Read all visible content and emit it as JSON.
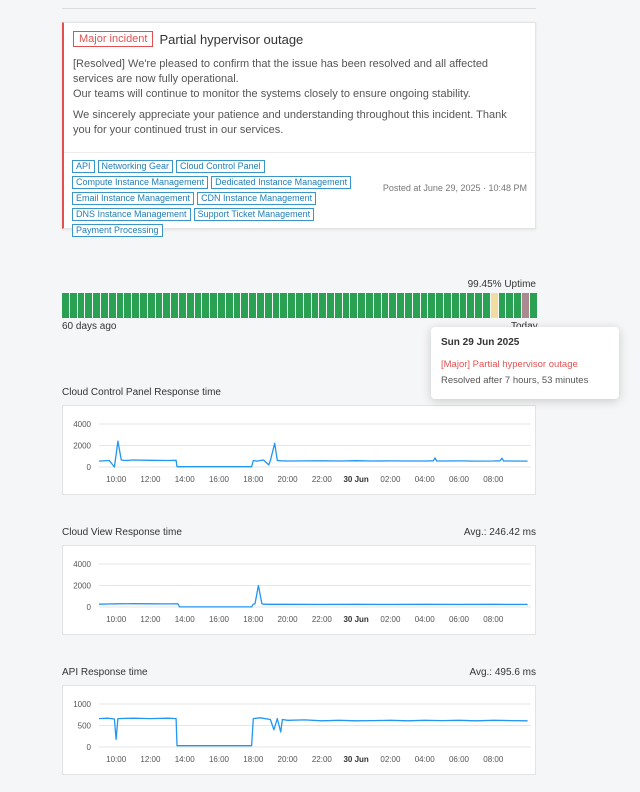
{
  "incident": {
    "severity": "Major incident",
    "title": "Partial hypervisor outage",
    "paragraphs": [
      "[Resolved] We're pleased to confirm that the issue has been resolved and all affected services are now fully operational.",
      "Our teams will continue to monitor the systems closely to ensure ongoing stability.",
      "We sincerely appreciate your patience and understanding throughout this incident. Thank you for your continued trust in our services."
    ],
    "tags": [
      "API",
      "Networking Gear",
      "Cloud Control Panel",
      "Compute Instance Management",
      "Dedicated Instance Management",
      "Email Instance Management",
      "CDN Instance Management",
      "DNS Instance Management",
      "Support Ticket Management",
      "Payment Processing"
    ],
    "posted": "Posted at June 29, 2025 · 10:48 PM",
    "accent_color": "#e05252"
  },
  "uptime": {
    "percent_label": "99.45% Uptime",
    "range_start": "60 days ago",
    "range_end": "Today",
    "days": [
      "up",
      "up",
      "up",
      "up",
      "up",
      "up",
      "up",
      "up",
      "up",
      "up",
      "up",
      "up",
      "up",
      "up",
      "up",
      "up",
      "up",
      "up",
      "up",
      "up",
      "up",
      "up",
      "up",
      "up",
      "up",
      "up",
      "up",
      "up",
      "up",
      "up",
      "up",
      "up",
      "up",
      "up",
      "up",
      "up",
      "up",
      "up",
      "up",
      "up",
      "up",
      "up",
      "up",
      "up",
      "up",
      "up",
      "up",
      "up",
      "up",
      "up",
      "up",
      "up",
      "up",
      "up",
      "up",
      "warn",
      "up",
      "up",
      "up",
      "outage",
      "up"
    ],
    "colors": {
      "up": "#2aa152",
      "warn": "#f2dc9f",
      "outage": "#a98a90"
    }
  },
  "tooltip": {
    "date": "Sun 29 Jun 2025",
    "incident": "[Major] Partial hypervisor outage",
    "resolved": "Resolved after 7 hours, 53 minutes"
  },
  "chart_data": [
    {
      "type": "line",
      "title": "Cloud Control Panel Response time",
      "avg_label": "",
      "ylim": [
        0,
        4000
      ],
      "yticks": [
        "0",
        "2000",
        "4000"
      ],
      "xticks": [
        "10:00",
        "12:00",
        "14:00",
        "16:00",
        "18:00",
        "20:00",
        "22:00",
        "30 Jun",
        "02:00",
        "04:00",
        "06:00",
        "08:00"
      ],
      "x_hours": [
        9.0,
        9.6,
        9.9,
        10.1,
        10.3,
        10.5,
        11.0,
        12.0,
        13.0,
        13.5,
        13.55,
        14,
        15,
        16,
        17,
        17.9,
        18.0,
        18.2,
        18.6,
        18.9,
        19.0,
        19.25,
        19.4,
        19.6,
        20.0,
        21.0,
        22.0,
        23.0,
        24.0,
        25.0,
        26.0,
        27.0,
        28.0,
        28.5,
        28.6,
        28.7,
        29.0,
        30.0,
        31.0,
        32.0,
        32.4,
        32.5,
        32.6,
        33.0,
        34.0
      ],
      "values": [
        550,
        600,
        0,
        2400,
        650,
        600,
        650,
        620,
        600,
        620,
        30,
        30,
        30,
        30,
        30,
        30,
        600,
        550,
        650,
        200,
        600,
        2200,
        600,
        580,
        560,
        570,
        580,
        560,
        590,
        560,
        570,
        560,
        560,
        580,
        850,
        560,
        560,
        570,
        550,
        560,
        580,
        820,
        560,
        560,
        550
      ],
      "color": "#2196f3"
    },
    {
      "type": "line",
      "title": "Cloud View Response time",
      "avg_label": "Avg.: 246.42 ms",
      "ylim": [
        0,
        4000
      ],
      "yticks": [
        "0",
        "2000",
        "4000"
      ],
      "xticks": [
        "10:00",
        "12:00",
        "14:00",
        "16:00",
        "18:00",
        "20:00",
        "22:00",
        "30 Jun",
        "02:00",
        "04:00",
        "06:00",
        "08:00"
      ],
      "x_hours": [
        9.0,
        9.5,
        10.0,
        11.0,
        12.0,
        13.0,
        13.6,
        13.7,
        14,
        16,
        17.9,
        18.0,
        18.1,
        18.3,
        18.5,
        18.6,
        19.0,
        20.0,
        22.0,
        24.0,
        26.0,
        28.0,
        30.0,
        32.0,
        34.0
      ],
      "values": [
        260,
        280,
        300,
        310,
        300,
        290,
        300,
        10,
        10,
        10,
        10,
        260,
        300,
        2000,
        300,
        260,
        250,
        250,
        240,
        250,
        245,
        250,
        245,
        250,
        245
      ],
      "color": "#2196f3"
    },
    {
      "type": "line",
      "title": "API Response time",
      "avg_label": "Avg.: 495.6 ms",
      "ylim": [
        0,
        1000
      ],
      "yticks": [
        "0",
        "500",
        "1000"
      ],
      "xticks": [
        "10:00",
        "12:00",
        "14:00",
        "16:00",
        "18:00",
        "20:00",
        "22:00",
        "30 Jun",
        "02:00",
        "04:00",
        "06:00",
        "08:00"
      ],
      "x_hours": [
        9.0,
        9.5,
        9.9,
        10.0,
        10.1,
        11.0,
        12.0,
        13.0,
        13.5,
        13.55,
        14,
        16,
        17.9,
        18.0,
        18.4,
        19.0,
        19.2,
        19.4,
        19.6,
        19.7,
        20.0,
        21.0,
        22.0,
        23.0,
        24.0,
        25.0,
        26.0,
        27.0,
        28.0,
        29.0,
        30.0,
        31.0,
        32.0,
        33.0,
        34.0
      ],
      "values": [
        660,
        670,
        650,
        180,
        660,
        670,
        660,
        670,
        660,
        30,
        30,
        30,
        30,
        660,
        680,
        640,
        400,
        660,
        350,
        640,
        620,
        630,
        610,
        620,
        610,
        615,
        620,
        610,
        620,
        615,
        620,
        610,
        620,
        615,
        610
      ],
      "color": "#2196f3"
    }
  ]
}
